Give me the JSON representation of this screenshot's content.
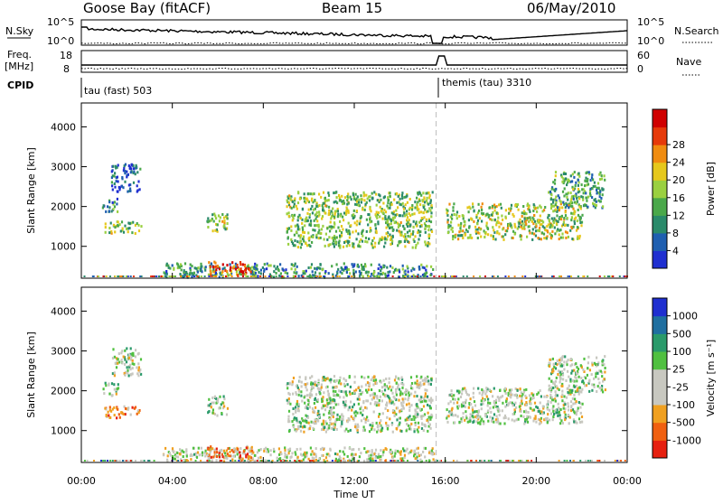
{
  "header": {
    "title": "Goose Bay (fitACF)",
    "beam": "Beam 15",
    "date": "06/May/2010"
  },
  "strip": {
    "nsky_label": "N.Sky",
    "nsearch_label": "N.Search",
    "freq_label": "Freq.",
    "freq_unit": "[MHz]",
    "nave_label": "Nave",
    "cpid_label": "CPID",
    "nsky_ticks": [
      "10^5",
      "10^0"
    ],
    "nsearch_ticks": [
      "10^5",
      "10^0"
    ],
    "freq_ticks": [
      "18",
      "8"
    ],
    "nave_ticks": [
      "60",
      "0"
    ],
    "cpid_left": "tau (fast) 503",
    "cpid_right": "themis (tau) 3310"
  },
  "chart_data": [
    {
      "type": "heatmap",
      "panel": "power",
      "ylabel": "Slant Range [km]",
      "xlabel": "",
      "y_ticks": [
        1000,
        2000,
        3000,
        4000
      ],
      "ylim": [
        200,
        4600
      ],
      "x_tick_labels": [
        "00:00",
        "04:00",
        "08:00",
        "12:00",
        "16:00",
        "20:00",
        "00:00"
      ],
      "x_hours": [
        0,
        4,
        8,
        12,
        16,
        20,
        24
      ],
      "xlim": [
        0,
        24
      ],
      "colorbar_label": "Power [dB]",
      "colorbar_ticks": [
        "4",
        "8",
        "12",
        "16",
        "20",
        "24",
        "28"
      ],
      "colors": [
        "#1f2fd0",
        "#1f5fb0",
        "#2a8a6a",
        "#4aa84a",
        "#9ad040",
        "#e6c81c",
        "#f08c10",
        "#e63a0a",
        "#d00000"
      ],
      "regions": [
        {
          "t0": 1.0,
          "t1": 2.6,
          "r0": 1350,
          "r1": 1650,
          "level": 0.45
        },
        {
          "t0": 0.9,
          "t1": 1.6,
          "r0": 1900,
          "r1": 2250,
          "level": 0.3
        },
        {
          "t0": 1.3,
          "t1": 2.6,
          "r0": 2400,
          "r1": 3100,
          "level": 0.15
        },
        {
          "t0": 5.5,
          "t1": 6.4,
          "r0": 1400,
          "r1": 1900,
          "level": 0.45
        },
        {
          "t0": 9.0,
          "t1": 15.4,
          "r0": 1000,
          "r1": 2400,
          "level": 0.45
        },
        {
          "t0": 16.0,
          "t1": 22.0,
          "r0": 1200,
          "r1": 2100,
          "level": 0.5
        },
        {
          "t0": 20.5,
          "t1": 23.0,
          "r0": 2000,
          "r1": 2900,
          "level": 0.35
        },
        {
          "t0": 3.5,
          "t1": 15.5,
          "r0": 250,
          "r1": 600,
          "level": 0.3
        },
        {
          "t0": 5.5,
          "t1": 7.5,
          "r0": 300,
          "r1": 650,
          "level": 0.8
        }
      ]
    },
    {
      "type": "heatmap",
      "panel": "velocity",
      "ylabel": "Slant Range [km]",
      "xlabel": "Time UT",
      "y_ticks": [
        1000,
        2000,
        3000,
        4000
      ],
      "ylim": [
        200,
        4600
      ],
      "x_tick_labels": [
        "00:00",
        "04:00",
        "08:00",
        "12:00",
        "16:00",
        "20:00",
        "00:00"
      ],
      "x_hours": [
        0,
        4,
        8,
        12,
        16,
        20,
        24
      ],
      "xlim": [
        0,
        24
      ],
      "colorbar_label": "Velocity [m s⁻¹]",
      "colorbar_ticks": [
        "1000",
        "500",
        "100",
        "25",
        "-25",
        "-100",
        "-500",
        "-1000"
      ],
      "colors": [
        "#1f2fd0",
        "#1f6fa0",
        "#2a9a6a",
        "#50c040",
        "#c8c8c0",
        "#c8c8c0",
        "#f0a020",
        "#f06010",
        "#e62010"
      ],
      "regions": [
        {
          "t0": 1.0,
          "t1": 2.6,
          "r0": 1350,
          "r1": 1650,
          "level": 0.72
        },
        {
          "t0": 0.9,
          "t1": 1.6,
          "r0": 1900,
          "r1": 2250,
          "level": 0.5
        },
        {
          "t0": 1.3,
          "t1": 2.6,
          "r0": 2400,
          "r1": 3100,
          "level": 0.5
        },
        {
          "t0": 5.5,
          "t1": 6.4,
          "r0": 1400,
          "r1": 1900,
          "level": 0.5
        },
        {
          "t0": 9.0,
          "t1": 15.4,
          "r0": 1000,
          "r1": 2400,
          "level": 0.5
        },
        {
          "t0": 16.0,
          "t1": 22.0,
          "r0": 1200,
          "r1": 2100,
          "level": 0.5
        },
        {
          "t0": 20.5,
          "t1": 23.0,
          "r0": 2000,
          "r1": 2900,
          "level": 0.5
        },
        {
          "t0": 3.5,
          "t1": 15.5,
          "r0": 250,
          "r1": 600,
          "level": 0.55
        },
        {
          "t0": 5.5,
          "t1": 7.5,
          "r0": 300,
          "r1": 650,
          "level": 0.75
        }
      ]
    }
  ]
}
